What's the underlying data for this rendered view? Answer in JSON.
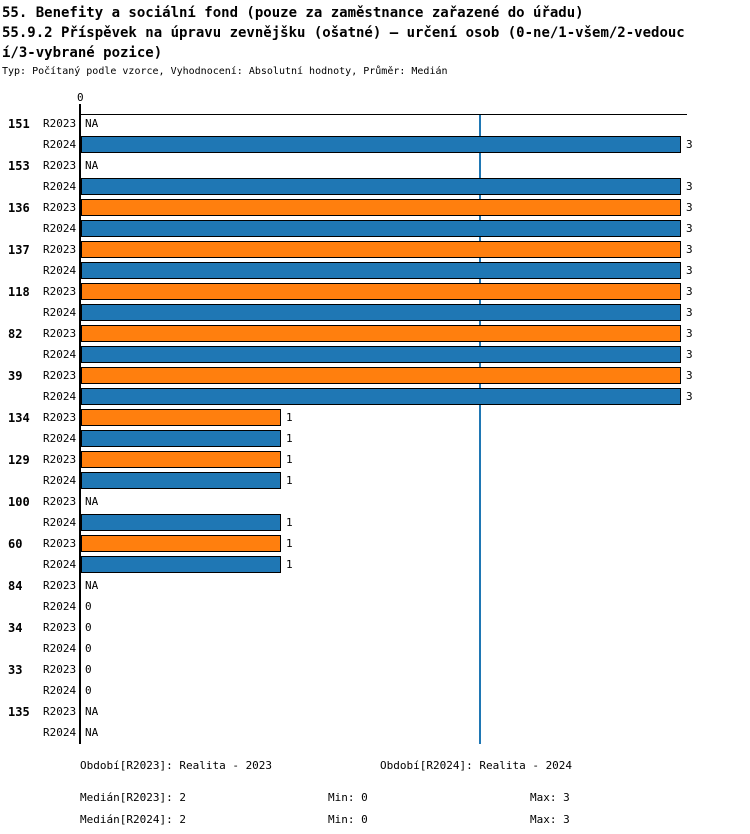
{
  "header": {
    "title_lines": [
      "55. Benefity a sociální fond (pouze za zaměstnance zařazené do úřadu)",
      "55.9.2 Příspěvek na úpravu zevnějšku (ošatné) – určení osob (0-ne/1-všem/2-vedouc",
      "í/3-vybrané pozice)"
    ],
    "meta": "Typ: Počítaný podle vzorce, Vyhodnocení: Absolutní hodnoty, Průměr: Medián"
  },
  "chart_data": {
    "type": "bar",
    "orientation": "horizontal",
    "title": "55.9.2 Příspěvek na úpravu zevnějšku (ošatné) – určení osob (0-ne/1-všem/2-vedoucí/3-vybrané pozice)",
    "axis": {
      "min": 0,
      "max": 3,
      "tick_labels": [
        "0"
      ],
      "grid": false
    },
    "median_line": {
      "value": 2,
      "color": "#1f77b4"
    },
    "na_text": "NA",
    "series": [
      {
        "name": "R2023",
        "color": "#ff7f0e"
      },
      {
        "name": "R2024",
        "color": "#1f77b4"
      }
    ],
    "categories": [
      "151",
      "153",
      "136",
      "137",
      "118",
      "82",
      "39",
      "134",
      "129",
      "100",
      "60",
      "84",
      "34",
      "33",
      "135"
    ],
    "values": {
      "R2023": [
        "NA",
        "NA",
        3,
        3,
        3,
        3,
        3,
        1,
        1,
        "NA",
        1,
        "NA",
        0,
        0,
        "NA"
      ],
      "R2024": [
        3,
        3,
        3,
        3,
        3,
        3,
        3,
        1,
        1,
        1,
        1,
        0,
        0,
        0,
        "NA"
      ]
    }
  },
  "footer": {
    "period_2023": "Období[R2023]: Realita - 2023",
    "period_2024": "Období[R2024]: Realita - 2024",
    "median_2023": "Medián[R2023]: 2",
    "min_2023": "Min: 0",
    "max_2023": "Max: 3",
    "median_2024": "Medián[R2024]: 2",
    "min_2024": "Min: 0",
    "max_2024": "Max: 3"
  },
  "colors": {
    "r2023_bar": "#ff7f0e",
    "r2024_bar": "#1f77b4",
    "median_line": "#1f77b4",
    "axis": "#000000",
    "background": "#ffffff",
    "text": "#000000"
  }
}
